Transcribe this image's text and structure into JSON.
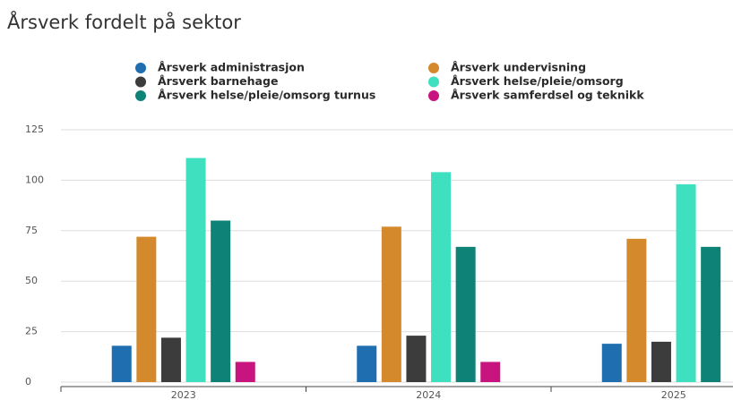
{
  "chart_data": {
    "type": "bar",
    "title": "Årsverk fordelt på sektor",
    "categories": [
      "2023",
      "2024",
      "2025"
    ],
    "series": [
      {
        "name": "Årsverk administrasjon",
        "color": "#1f6fb0",
        "values": [
          18,
          18,
          19
        ]
      },
      {
        "name": "Årsverk undervisning",
        "color": "#d48a2c",
        "values": [
          72,
          77,
          71
        ]
      },
      {
        "name": "Årsverk barnehage",
        "color": "#3c3c3c",
        "values": [
          22,
          23,
          20
        ]
      },
      {
        "name": "Årsverk helse/pleie/omsorg",
        "color": "#3fe0bf",
        "values": [
          111,
          104,
          98
        ]
      },
      {
        "name": "Årsverk helse/pleie/omsorg turnus",
        "color": "#0f8278",
        "values": [
          80,
          67,
          67
        ]
      },
      {
        "name": "Årsverk samferdsel og teknikk",
        "color": "#c8147f",
        "values": [
          10,
          10,
          null
        ]
      }
    ],
    "ylim": [
      0,
      125
    ],
    "yticks": [
      0,
      25,
      50,
      75,
      100,
      125
    ],
    "grid": true
  }
}
